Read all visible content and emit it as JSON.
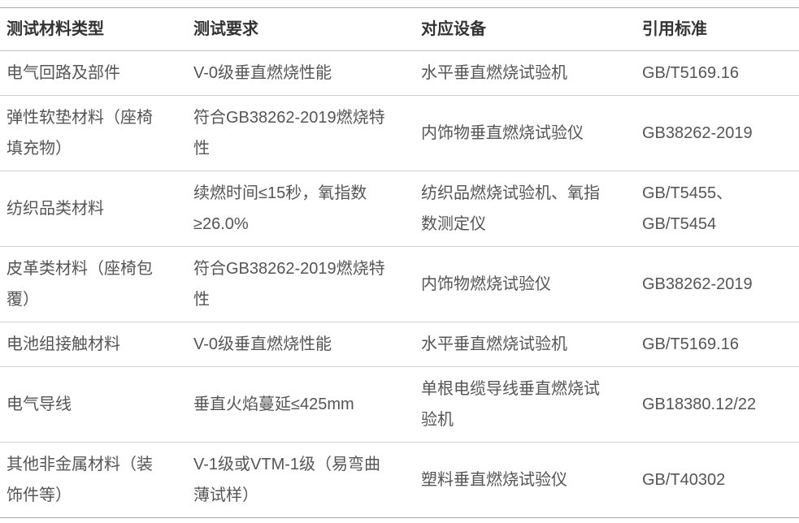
{
  "colors": {
    "background": "#ffffff",
    "header_text": "#333333",
    "body_text": "#555555",
    "outer_border": "#a9a9a9",
    "inner_border": "#d2d2d2"
  },
  "table": {
    "columns": [
      {
        "label": "测试材料类型"
      },
      {
        "label": "测试要求"
      },
      {
        "label": "对应设备"
      },
      {
        "label": "引用标准"
      }
    ],
    "rows": [
      {
        "material": "电气回路及部件",
        "requirement": "V-0级垂直燃烧性能",
        "equipment": "水平垂直燃烧试验机",
        "standard": "GB/T5169.16"
      },
      {
        "material": "弹性软垫材料（座椅填充物）",
        "requirement": "符合GB38262-2019燃烧特性",
        "equipment": "内饰物垂直燃烧试验仪",
        "standard": "GB38262-2019"
      },
      {
        "material": "纺织品类材料",
        "requirement": "续燃时间≤15秒，氧指数≥26.0%",
        "equipment": "纺织品燃烧试验机、氧指数测定仪",
        "standard": "GB/T5455、GB/T5454"
      },
      {
        "material": "皮革类材料（座椅包覆）",
        "requirement": "符合GB38262-2019燃烧特性",
        "equipment": "内饰物燃烧试验仪",
        "standard": "GB38262-2019"
      },
      {
        "material": "电池组接触材料",
        "requirement": "V-0级垂直燃烧性能",
        "equipment": "水平垂直燃烧试验机",
        "standard": "GB/T5169.16"
      },
      {
        "material": "电气导线",
        "requirement": "垂直火焰蔓延≤425mm",
        "equipment": "单根电缆导线垂直燃烧试验机",
        "standard": "GB18380.12/22"
      },
      {
        "material": "其他非金属材料（装饰件等）",
        "requirement": "V-1级或VTM-1级（易弯曲薄试样）",
        "equipment": "塑料垂直燃烧试验仪",
        "standard": "GB/T40302"
      }
    ]
  }
}
